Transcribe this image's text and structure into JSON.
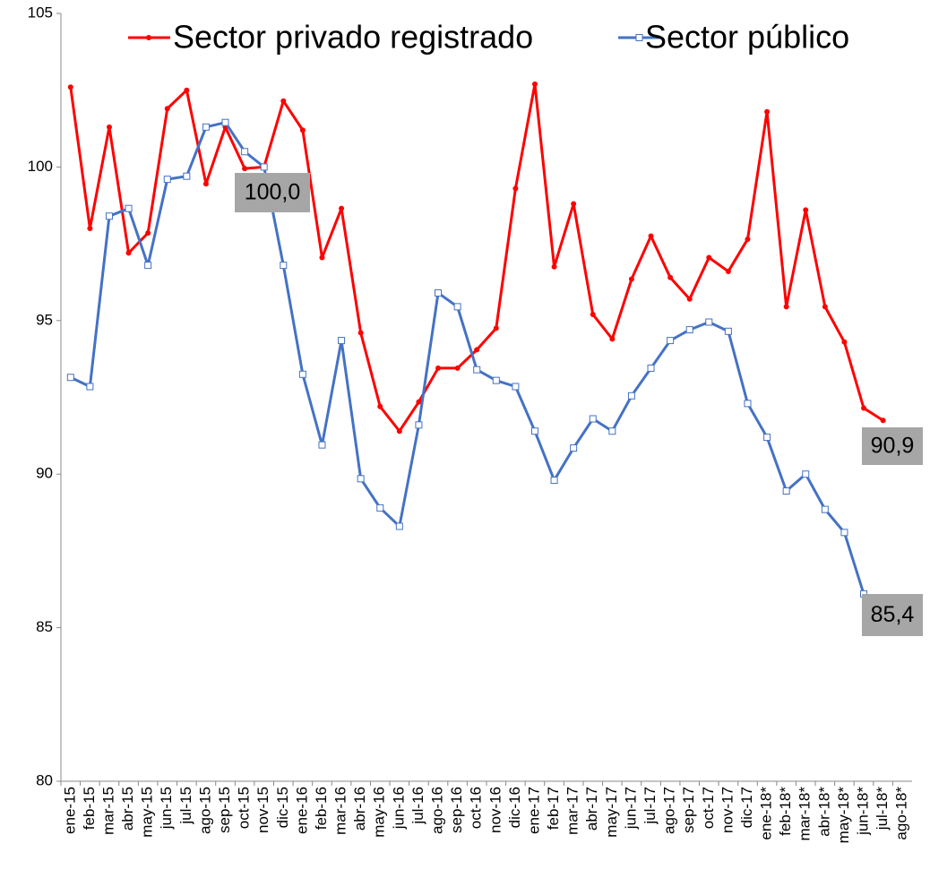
{
  "chart_data": {
    "type": "line",
    "categories": [
      "ene-15",
      "feb-15",
      "mar-15",
      "abr-15",
      "may-15",
      "jun-15",
      "jul-15",
      "ago-15",
      "sep-15",
      "oct-15",
      "nov-15",
      "dic-15",
      "ene-16",
      "feb-16",
      "mar-16",
      "abr-16",
      "may-16",
      "jun-16",
      "jul-16",
      "ago-16",
      "sep-16",
      "oct-16",
      "nov-16",
      "dic-16",
      "ene-17",
      "feb-17",
      "mar-17",
      "abr-17",
      "may-17",
      "jun-17",
      "jul-17",
      "ago-17",
      "sep-17",
      "oct-17",
      "nov-17",
      "dic-17",
      "ene-18*",
      "feb-18*",
      "mar-18*",
      "abr-18*",
      "may-18*",
      "jun-18*",
      "jul-18*",
      "ago-18*"
    ],
    "series": [
      {
        "name": "Sector privado registrado",
        "color": "#ff0000",
        "marker": "circle",
        "values": [
          102.6,
          98.0,
          101.3,
          97.2,
          97.85,
          101.9,
          102.5,
          99.45,
          101.3,
          99.95,
          100.0,
          102.15,
          101.2,
          97.05,
          98.65,
          94.6,
          92.2,
          91.4,
          92.35,
          93.45,
          93.45,
          94.05,
          94.75,
          99.3,
          102.7,
          96.75,
          98.8,
          95.2,
          94.4,
          96.35,
          97.75,
          96.4,
          95.7,
          97.05,
          96.6,
          97.65,
          101.8,
          95.45,
          98.6,
          95.45,
          94.3,
          92.15,
          91.75,
          null
        ]
      },
      {
        "name": "Sector público",
        "color": "#4472c4",
        "marker": "square",
        "values": [
          93.15,
          92.85,
          98.4,
          98.65,
          96.8,
          99.6,
          99.7,
          101.3,
          101.45,
          100.5,
          100.0,
          96.8,
          93.25,
          90.95,
          94.35,
          89.85,
          88.9,
          88.3,
          91.6,
          95.9,
          95.45,
          93.4,
          93.05,
          92.85,
          91.4,
          89.8,
          90.85,
          91.8,
          91.4,
          92.55,
          93.45,
          94.35,
          94.7,
          94.95,
          94.65,
          92.3,
          91.2,
          89.45,
          90.0,
          88.85,
          88.1,
          86.1,
          null,
          null
        ]
      }
    ],
    "annotations": [
      "100,0",
      "90,9",
      "85,4"
    ],
    "ylim": [
      80,
      105
    ],
    "yticks": [
      80,
      85,
      90,
      95,
      100,
      105
    ],
    "grid": false
  }
}
